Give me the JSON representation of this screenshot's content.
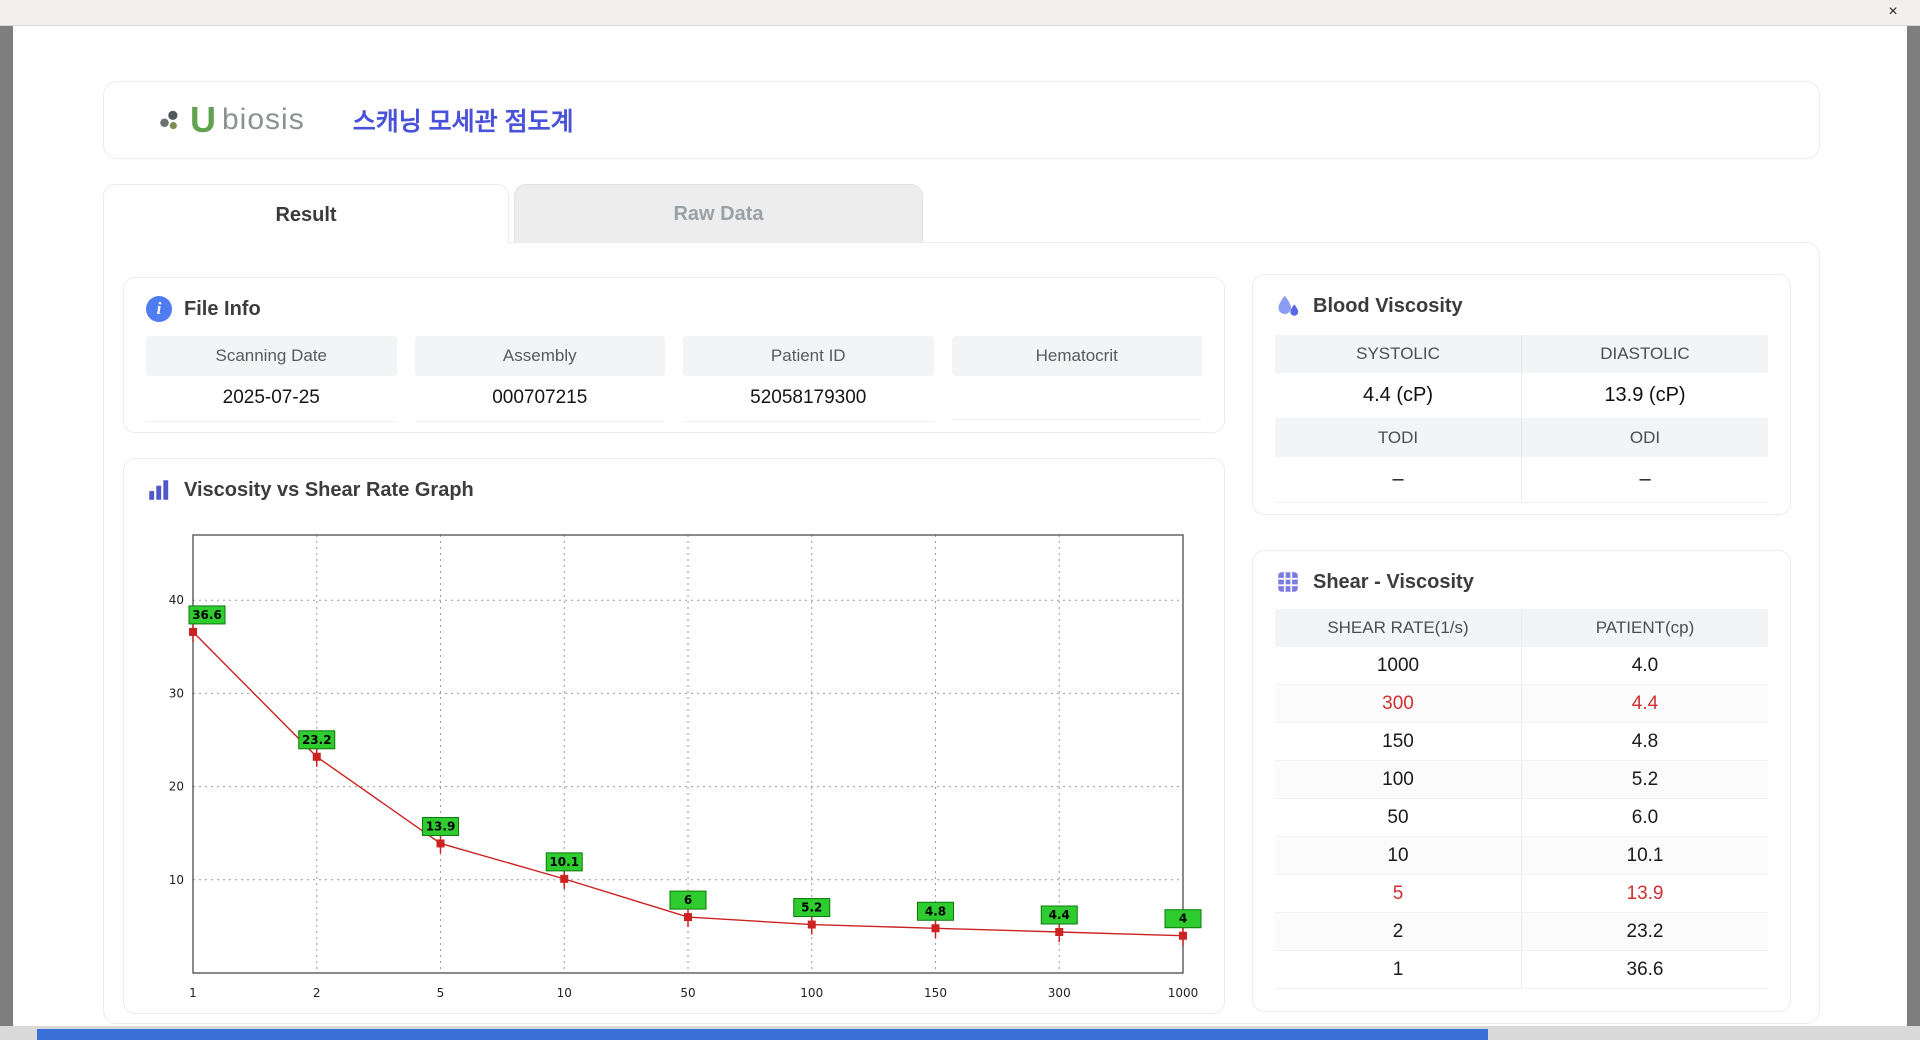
{
  "window": {
    "close_label": "×"
  },
  "header": {
    "logo_u": "U",
    "logo_rest": "biosis",
    "app_title": "스캐닝 모세관 점도계"
  },
  "theme": {
    "accent_blue": "#4a52d9",
    "highlight_red": "#d03030",
    "header_gray": "#f3f4f5"
  },
  "tabs": [
    {
      "label": "Result",
      "active": true
    },
    {
      "label": "Raw Data",
      "active": false
    }
  ],
  "file_info": {
    "title": "File Info",
    "fields": [
      {
        "label": "Scanning Date",
        "value": "2025-07-25"
      },
      {
        "label": "Assembly",
        "value": "000707215"
      },
      {
        "label": "Patient ID",
        "value": "52058179300"
      },
      {
        "label": "Hematocrit",
        "value": ""
      }
    ]
  },
  "blood_viscosity": {
    "title": "Blood Viscosity",
    "pairs": [
      {
        "label_left": "SYSTOLIC",
        "label_right": "DIASTOLIC",
        "value_left": "4.4 (cP)",
        "value_right": "13.9 (cP)"
      },
      {
        "label_left": "TODI",
        "label_right": "ODI",
        "value_left": "–",
        "value_right": "–"
      }
    ]
  },
  "shear_viscosity": {
    "title": "Shear - Viscosity",
    "columns": [
      "SHEAR RATE(1/s)",
      "PATIENT(cp)"
    ],
    "rows": [
      {
        "shear": "1000",
        "patient": "4.0",
        "highlight": false
      },
      {
        "shear": "300",
        "patient": "4.4",
        "highlight": true
      },
      {
        "shear": "150",
        "patient": "4.8",
        "highlight": false
      },
      {
        "shear": "100",
        "patient": "5.2",
        "highlight": false
      },
      {
        "shear": "50",
        "patient": "6.0",
        "highlight": false
      },
      {
        "shear": "10",
        "patient": "10.1",
        "highlight": false
      },
      {
        "shear": "5",
        "patient": "13.9",
        "highlight": true
      },
      {
        "shear": "2",
        "patient": "23.2",
        "highlight": false
      },
      {
        "shear": "1",
        "patient": "36.6",
        "highlight": false
      }
    ]
  },
  "chart_data": {
    "type": "line",
    "title": "Viscosity vs Shear Rate Graph",
    "x_scale": "categorical",
    "x_categories": [
      1,
      2,
      5,
      10,
      50,
      100,
      150,
      300,
      1000
    ],
    "values": [
      36.6,
      23.2,
      13.9,
      10.1,
      6.0,
      5.2,
      4.8,
      4.4,
      4.0
    ],
    "point_labels": [
      "36.6",
      "23.2",
      "13.9",
      "10.1",
      "6",
      "5.2",
      "4.8",
      "4.4",
      "4"
    ],
    "xlabel": "",
    "ylabel": "",
    "ylim": [
      0,
      47
    ],
    "yticks": [
      10,
      20,
      30,
      40
    ],
    "grid": true,
    "line_color": "#cc2222",
    "marker_color": "#cc2222",
    "label_bg": "#2fcc2f",
    "label_border": "#0a7a0a"
  }
}
